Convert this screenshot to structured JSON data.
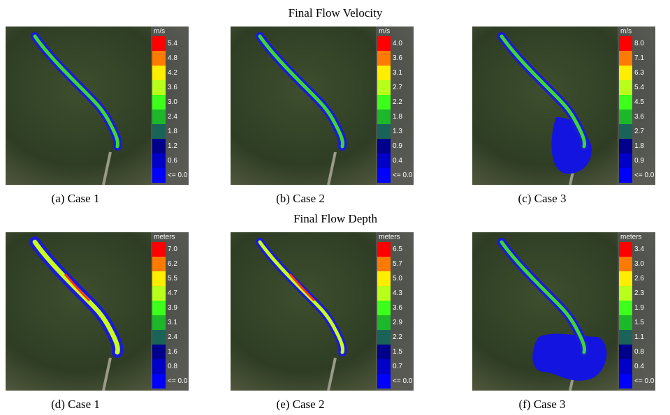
{
  "rows": [
    {
      "title": "Final Flow Velocity",
      "panels": [
        {
          "unit": "m/s",
          "legend": [
            "5.4",
            "4.8",
            "4.2",
            "3.6",
            "3.0",
            "2.4",
            "1.8",
            "1.2",
            "0.6",
            "<= 0.0"
          ],
          "caption": "(a)  Case  1"
        },
        {
          "unit": "m/s",
          "legend": [
            "4.0",
            "3.6",
            "3.1",
            "2.7",
            "2.2",
            "1.8",
            "1.3",
            "0.9",
            "0.4",
            "<= 0.0"
          ],
          "caption": "(b)  Case  2"
        },
        {
          "unit": "m/s",
          "legend": [
            "8.0",
            "7.1",
            "6.3",
            "5.4",
            "4.5",
            "3.6",
            "2.7",
            "1.8",
            "0.9",
            "<= 0.0"
          ],
          "caption": "(c)  Case  3"
        }
      ]
    },
    {
      "title": "Final Flow Depth",
      "panels": [
        {
          "unit": "meters",
          "legend": [
            "7.0",
            "6.2",
            "5.5",
            "4.7",
            "3.9",
            "3.1",
            "2.4",
            "1.6",
            "0.8",
            "<= 0.0"
          ],
          "caption": "(d)  Case  1"
        },
        {
          "unit": "meters",
          "legend": [
            "6.5",
            "5.7",
            "5.0",
            "4.3",
            "3.6",
            "2.9",
            "2.2",
            "1.5",
            "0.7",
            "<= 0.0"
          ],
          "caption": "(e)  Case  2"
        },
        {
          "unit": "meters",
          "legend": [
            "3.4",
            "3.0",
            "2.6",
            "2.3",
            "1.9",
            "1.5",
            "1.1",
            "0.8",
            "0.4",
            "<= 0.0"
          ],
          "caption": "(f)  Case  3"
        }
      ]
    }
  ]
}
